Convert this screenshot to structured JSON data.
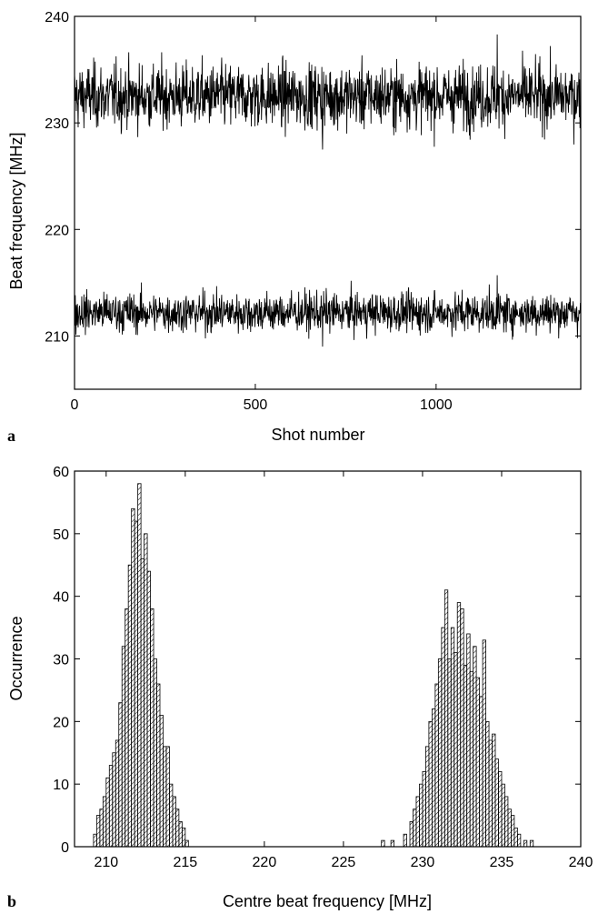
{
  "chart_data": [
    {
      "panel_label": "a",
      "type": "line",
      "xlabel": "Shot number",
      "ylabel": "Beat frequency [MHz]",
      "xlim": [
        0,
        1400
      ],
      "ylim": [
        205,
        240
      ],
      "x_ticks": [
        0,
        500,
        1000
      ],
      "x_tick_labels": [
        "0",
        "500",
        "1000"
      ],
      "y_ticks": [
        210,
        220,
        230,
        240
      ],
      "y_tick_labels": [
        "210",
        "220",
        "230",
        "240"
      ],
      "grid": false,
      "n_points": 1400,
      "series": [
        {
          "mean": 232.5,
          "min": 227.5,
          "max": 238.3
        },
        {
          "mean": 212.2,
          "min": 209.0,
          "max": 215.7
        }
      ],
      "color": "#000000"
    },
    {
      "panel_label": "b",
      "type": "bar",
      "xlabel": "Centre beat frequency [MHz]",
      "ylabel": "Occurrence",
      "xlim": [
        208,
        240
      ],
      "ylim": [
        0,
        60
      ],
      "x_ticks": [
        210,
        215,
        220,
        225,
        230,
        235,
        240
      ],
      "x_tick_labels": [
        "210",
        "215",
        "220",
        "225",
        "230",
        "235",
        "240"
      ],
      "y_ticks": [
        0,
        10,
        20,
        30,
        40,
        50,
        60
      ],
      "y_tick_labels": [
        "0",
        "10",
        "20",
        "30",
        "40",
        "50",
        "60"
      ],
      "bin_width": 0.2,
      "bins": [
        [
          209.3,
          2
        ],
        [
          209.5,
          5
        ],
        [
          209.7,
          6
        ],
        [
          209.9,
          8
        ],
        [
          210.1,
          11
        ],
        [
          210.3,
          13
        ],
        [
          210.5,
          15
        ],
        [
          210.7,
          17
        ],
        [
          210.9,
          23
        ],
        [
          211.1,
          32
        ],
        [
          211.3,
          38
        ],
        [
          211.5,
          45
        ],
        [
          211.7,
          54
        ],
        [
          211.9,
          52
        ],
        [
          212.1,
          58
        ],
        [
          212.3,
          46
        ],
        [
          212.5,
          50
        ],
        [
          212.7,
          44
        ],
        [
          212.9,
          38
        ],
        [
          213.1,
          30
        ],
        [
          213.3,
          26
        ],
        [
          213.5,
          21
        ],
        [
          213.7,
          16
        ],
        [
          213.9,
          16
        ],
        [
          214.1,
          10
        ],
        [
          214.3,
          8
        ],
        [
          214.5,
          6
        ],
        [
          214.7,
          4
        ],
        [
          214.9,
          3
        ],
        [
          215.1,
          1
        ],
        [
          227.5,
          1
        ],
        [
          228.1,
          1
        ],
        [
          228.9,
          2
        ],
        [
          229.3,
          4
        ],
        [
          229.5,
          6
        ],
        [
          229.7,
          8
        ],
        [
          229.9,
          10
        ],
        [
          230.1,
          12
        ],
        [
          230.3,
          16
        ],
        [
          230.5,
          20
        ],
        [
          230.7,
          22
        ],
        [
          230.9,
          26
        ],
        [
          231.1,
          30
        ],
        [
          231.3,
          35
        ],
        [
          231.5,
          41
        ],
        [
          231.7,
          30
        ],
        [
          231.9,
          35
        ],
        [
          232.1,
          31
        ],
        [
          232.3,
          39
        ],
        [
          232.5,
          38
        ],
        [
          232.7,
          29
        ],
        [
          232.9,
          34
        ],
        [
          233.1,
          28
        ],
        [
          233.3,
          32
        ],
        [
          233.5,
          27
        ],
        [
          233.7,
          24
        ],
        [
          233.9,
          33
        ],
        [
          234.1,
          20
        ],
        [
          234.3,
          17
        ],
        [
          234.5,
          18
        ],
        [
          234.7,
          14
        ],
        [
          234.9,
          12
        ],
        [
          235.1,
          10
        ],
        [
          235.3,
          8
        ],
        [
          235.5,
          6
        ],
        [
          235.7,
          5
        ],
        [
          235.9,
          3
        ],
        [
          236.1,
          2
        ],
        [
          236.5,
          1
        ],
        [
          236.9,
          1
        ]
      ],
      "bar_fill_pattern": "diagonal-hatch",
      "color": "#000000"
    }
  ]
}
